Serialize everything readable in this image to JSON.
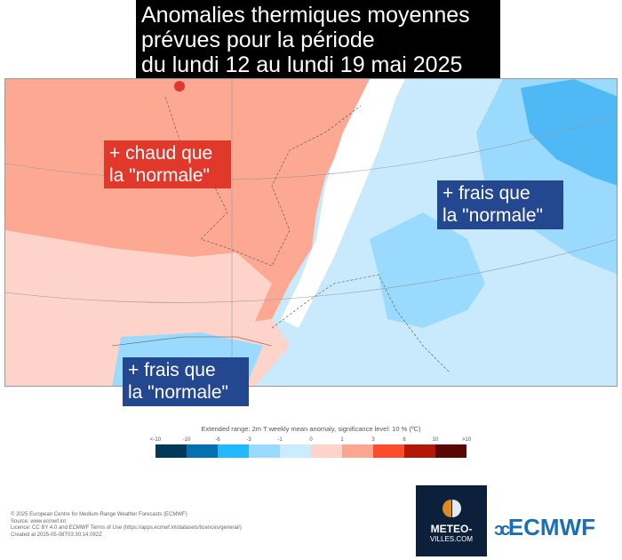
{
  "title": {
    "lines": [
      "Anomalies thermiques moyennes",
      "prévues pour la période",
      "du lundi 12 au lundi 19 mai 2025"
    ]
  },
  "labels": {
    "warm": [
      "+ chaud que",
      "la \"normale\""
    ],
    "cool_east": [
      "+ frais que",
      "la \"normale\""
    ],
    "cool_south": [
      "+ frais que",
      "la \"normale\""
    ]
  },
  "colorbar": {
    "title": "Extended range: 2m T weekly mean anomaly, significance level: 10 % (ºC)",
    "ticks": [
      "<-10",
      "-10",
      "-6",
      "-3",
      "-1",
      "0",
      "1",
      "3",
      "6",
      "10",
      ">10"
    ],
    "colors": [
      "#023858",
      "#0570b0",
      "#22b9fc",
      "#9bdaff",
      "#cbecfd",
      "#fdd4cc",
      "#fca68f",
      "#fb4d2c",
      "#b31706",
      "#5a0602"
    ]
  },
  "footer": [
    "© 2025 European Centre for Medium-Range Weather Forecasts (ECMWF)",
    "Source: www.ecmwf.int",
    "Licence: CC BY 4.0 and ECMWF Terms of Use (https://apps.ecmwf.int/datasets/licences/general/)",
    "Created at 2025-05-08T03:30:14.092Z"
  ],
  "logos": {
    "meteo_villes": [
      "METEO-",
      "VILLES.COM"
    ],
    "ecmwf": "ECMWF"
  }
}
